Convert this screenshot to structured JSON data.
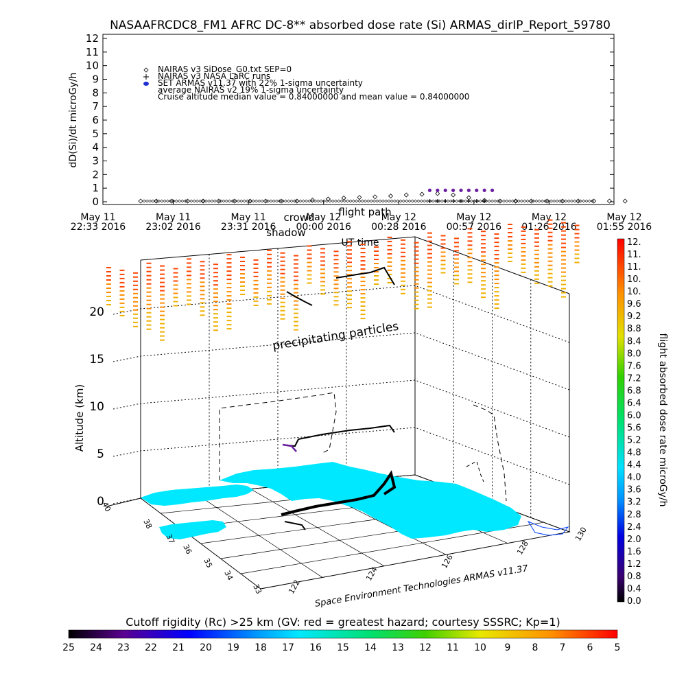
{
  "report_title": "NASAAFRCDC8_FM1 AFRC DC-8** absorbed dose rate (Si) ARMAS_dirIP_Report_59780",
  "chart_data": [
    {
      "type": "scatter",
      "title": "NASAAFRCDC8_FM1 AFRC DC-8** absorbed dose rate (Si) ARMAS_dirIP_Report_59780",
      "ylabel": "dD(Si)/dt microGy/h",
      "xlabel": "UT time",
      "ylim": [
        0,
        12
      ],
      "yticks": [
        "0",
        "1",
        "2",
        "3",
        "4",
        "5",
        "6",
        "7",
        "8",
        "9",
        "10",
        "11",
        "12"
      ],
      "xticks": [
        {
          "line1": "May 11",
          "line2": "22:33 2016"
        },
        {
          "line1": "May 11",
          "line2": "23:02 2016"
        },
        {
          "line1": "May 11",
          "line2": "23:31 2016"
        },
        {
          "line1": "May 12",
          "line2": "00:00 2016"
        },
        {
          "line1": "May 12",
          "line2": "00:28 2016"
        },
        {
          "line1": "May 12",
          "line2": "00:57 2016"
        },
        {
          "line1": "May 12",
          "line2": "01:26 2016"
        },
        {
          "line1": "May 12",
          "line2": "01:55 2016"
        }
      ],
      "legend": [
        {
          "symbol": "◇",
          "text": "NAIRAS v3 SiDose_G0.txt SEP=0"
        },
        {
          "symbol": "+",
          "text": "NAIRAS v3 NASA LaRC runs"
        },
        {
          "symbol": "●",
          "text": "SET ARMAS v11.37 with 22% 1-sigma uncertainty"
        },
        {
          "symbol": "",
          "text": "average NAIRAS v2 19% 1-sigma uncertainty"
        },
        {
          "symbol": "",
          "text": "Cruise altitude median value = 0.84000000 and mean value = 0.84000000"
        }
      ],
      "legend_position": "top-left",
      "overlay_labels": [
        "shadow",
        "crowd",
        "flight path"
      ],
      "series": [
        {
          "marker": "diamond",
          "x_hours": [
            0.0,
            0.1,
            0.2,
            0.3,
            0.4,
            0.5,
            0.6,
            0.7,
            0.8,
            0.9,
            1.0,
            1.1,
            1.2,
            1.3,
            1.4,
            1.5,
            1.6,
            1.7,
            1.8,
            1.9,
            2.0,
            2.1,
            2.2,
            2.3,
            2.4,
            2.5,
            2.6,
            2.7,
            2.8,
            2.9,
            3.0,
            3.1
          ],
          "values": [
            0.05,
            0.05,
            0.05,
            0.05,
            0.05,
            0.05,
            0.05,
            0.05,
            0.05,
            0.05,
            0.05,
            0.12,
            0.2,
            0.28,
            0.32,
            0.36,
            0.42,
            0.5,
            0.55,
            0.6,
            0.5,
            0.3,
            0.1,
            0.05,
            0.05,
            0.05,
            0.05,
            0.05,
            0.05,
            0.05,
            0.05,
            0.05
          ]
        },
        {
          "marker": "cross",
          "x_hours": [
            1.85,
            1.9,
            1.95,
            2.0,
            2.05,
            2.1,
            2.15,
            2.2
          ],
          "values": [
            0.05,
            0.05,
            0.05,
            0.05,
            0.05,
            0.05,
            0.05,
            0.05
          ]
        },
        {
          "marker": "dot",
          "color": "#6a1fa0",
          "x_hours": [
            1.85,
            1.9,
            1.95,
            2.0,
            2.05,
            2.1,
            2.15,
            2.2,
            2.25
          ],
          "values": [
            0.84,
            0.84,
            0.84,
            0.84,
            0.84,
            0.84,
            0.84,
            0.84,
            0.84
          ]
        }
      ]
    },
    {
      "type": "scatter",
      "title": "",
      "zlabel": "Altitude (km)",
      "zticks": [
        "0",
        "5",
        "10",
        "15",
        "20"
      ],
      "lat_ticks": [
        "33",
        "34",
        "35",
        "36",
        "37",
        "38",
        "40"
      ],
      "lon_ticks": [
        "122",
        "124",
        "126",
        "128",
        "130"
      ],
      "annotation": "precipitating particles",
      "footer": "Space Environment Technologies ARMAS v11.37",
      "colorbar_label": "flight absorbed dose rate microGy/h",
      "colorbar_ticks": [
        "0.0",
        "0.4",
        "0.8",
        "1.2",
        "1.6",
        "2.0",
        "2.4",
        "2.8",
        "3.2",
        "3.6",
        "4.0",
        "4.4",
        "4.8",
        "5.2",
        "5.6",
        "6.0",
        "6.4",
        "6.8",
        "7.2",
        "7.6",
        "8.0",
        "8.4",
        "8.8",
        "9.2",
        "9.6",
        "10.",
        "10.",
        "11.",
        "11.",
        "12."
      ],
      "land_color": "#00e8ff",
      "flight_color": "#000000",
      "cruise_color": "#6a1fa0"
    },
    {
      "type": "heatmap",
      "title": "Cutoff rigidity (Rc) >25 km (GV: red = greatest hazard; courtesy SSSRC; Kp=1)",
      "ticks": [
        "25",
        "24",
        "23",
        "22",
        "21",
        "20",
        "19",
        "18",
        "17",
        "16",
        "15",
        "14",
        "13",
        "12",
        "11",
        "10",
        "9",
        "8",
        "7",
        "6",
        "5"
      ]
    }
  ]
}
